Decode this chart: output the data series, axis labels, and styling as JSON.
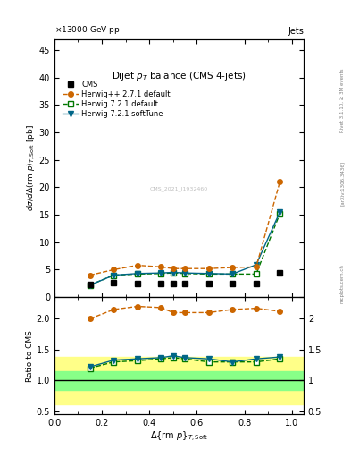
{
  "title": "Dijet $p_T$ balance (CMS 4-jets)",
  "collision": "13000 GeV pp",
  "label_right_top": "Jets",
  "watermark": "CMS_2021_I1932460",
  "rivet_label": "Rivet 3.1.10, ≥ 3M events",
  "arxiv_label": "[arXiv:1306.3436]",
  "mcplots_label": "mcplots.cern.ch",
  "x_data": [
    0.15,
    0.25,
    0.35,
    0.45,
    0.5,
    0.55,
    0.65,
    0.75,
    0.85,
    0.95
  ],
  "cms_y": [
    2.3,
    2.6,
    2.5,
    2.5,
    2.5,
    2.5,
    2.5,
    2.5,
    2.5,
    4.5
  ],
  "cms_color": "#000000",
  "herwig_pp_y": [
    4.0,
    5.0,
    5.8,
    5.5,
    5.2,
    5.2,
    5.2,
    5.4,
    5.5,
    21.0
  ],
  "herwig_pp_color": "#cc6600",
  "herwig721_def_y": [
    2.2,
    4.0,
    4.2,
    4.3,
    4.4,
    4.3,
    4.2,
    4.2,
    4.2,
    15.2
  ],
  "herwig721_def_color": "#007700",
  "herwig721_soft_y": [
    2.2,
    4.0,
    4.3,
    4.4,
    4.5,
    4.4,
    4.3,
    4.2,
    5.9,
    15.5
  ],
  "herwig721_soft_color": "#006688",
  "ratio_pp_y": [
    2.0,
    2.15,
    2.2,
    2.18,
    2.1,
    2.1,
    2.1,
    2.15,
    2.17,
    2.12
  ],
  "ratio_def_y": [
    1.2,
    1.3,
    1.32,
    1.35,
    1.37,
    1.35,
    1.3,
    1.3,
    1.3,
    1.35
  ],
  "ratio_soft_y": [
    1.22,
    1.33,
    1.35,
    1.37,
    1.4,
    1.37,
    1.35,
    1.3,
    1.35,
    1.38
  ],
  "green_band_lo": 0.85,
  "green_band_hi": 1.15,
  "yellow_band_lo": 0.62,
  "yellow_band_hi": 1.38,
  "ylim_main": [
    0,
    47
  ],
  "ylim_ratio": [
    0.45,
    2.35
  ],
  "xlim": [
    0.0,
    1.05
  ]
}
